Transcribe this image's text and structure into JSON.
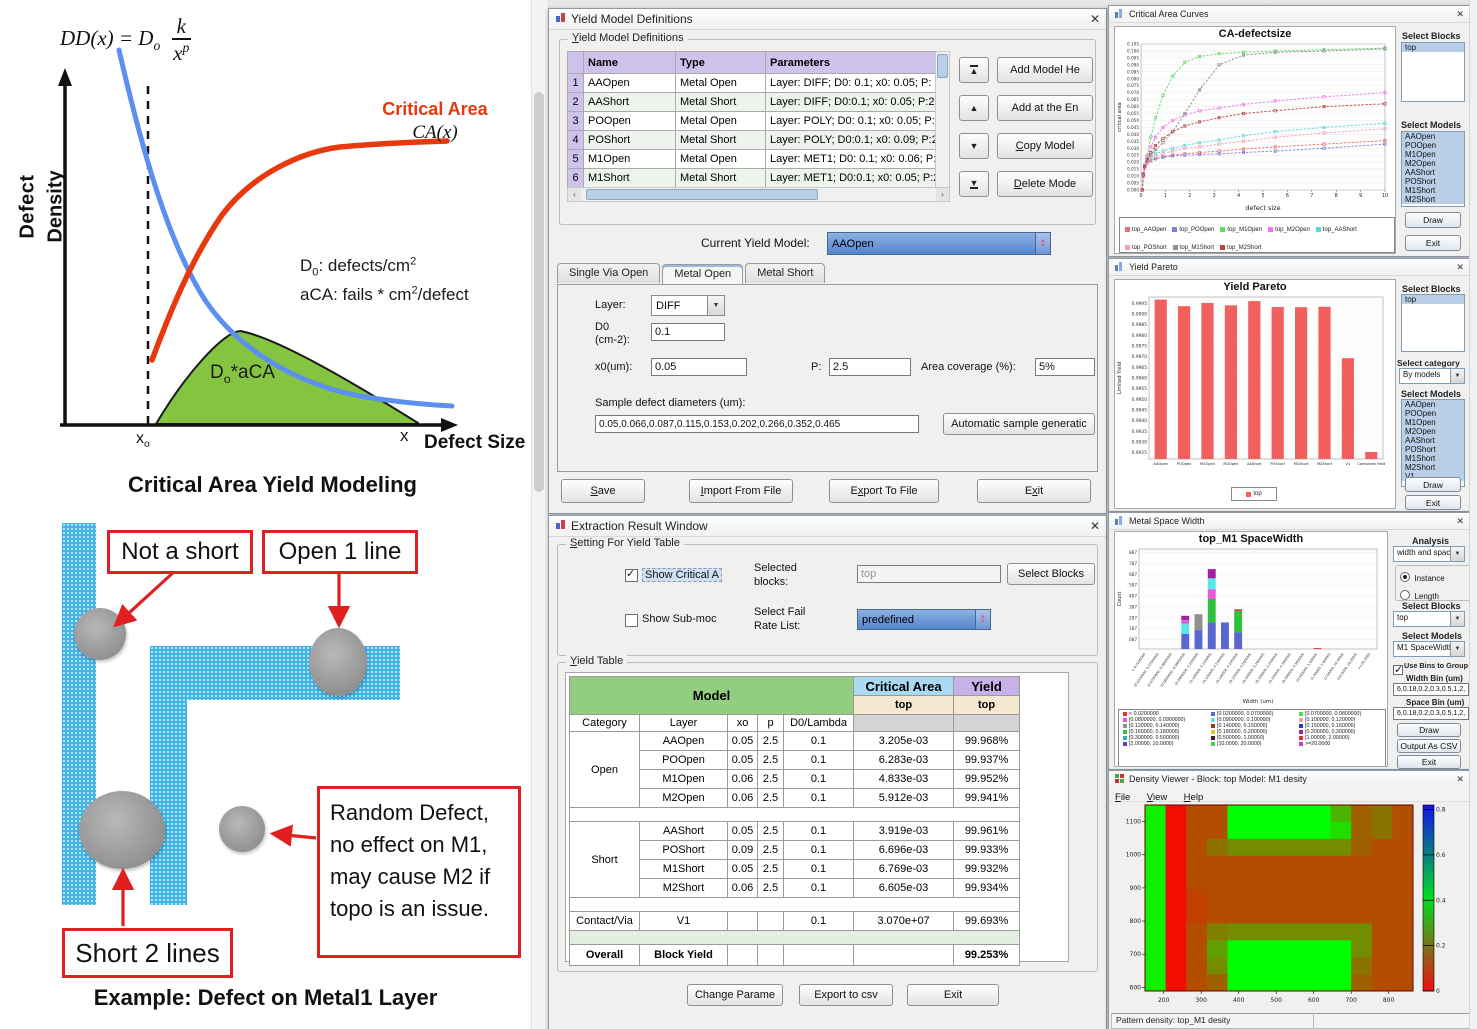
{
  "left": {
    "top_diagram": {
      "formula": {
        "pre": "DD(x) = D",
        "sub": "o",
        "num": "k",
        "den": "x",
        "den_exp": "p"
      },
      "y_axis": {
        "line1": "Defect",
        "line2": "Density"
      },
      "critical_area_label": "Critical Area",
      "ca_func_label": "CA(x)",
      "note_d0": {
        "base": "D",
        "sub": "0",
        "rest": ": defects/cm",
        "exp": "2"
      },
      "note_aca": {
        "pre": "aCA: fails * cm",
        "exp": "2",
        "rest": "/defect"
      },
      "area_label": {
        "base": "D",
        "sub": "o",
        "rest": "*aCA"
      },
      "x_axis": {
        "x0_base": "x",
        "x0_sub": "o",
        "x_end": "x",
        "label": "Defect Size"
      },
      "caption": "Critical Area Yield Modeling"
    },
    "bottom_diagram": {
      "callout_not_short": "Not a short",
      "callout_open": "Open 1 line",
      "callout_short": "Short 2 lines",
      "callout_random": [
        "Random  Defect,",
        "no effect on M1,",
        "may cause M2 if",
        "topo is an issue."
      ],
      "caption": "Example:  Defect on Metal1 Layer"
    }
  },
  "yield_model_window": {
    "title": "Yield Model Definitions",
    "group_label": "Yield Model Definitions",
    "table": {
      "columns": [
        "Name",
        "Type",
        "Parameters"
      ],
      "rows": [
        {
          "n": "1",
          "name": "AAOpen",
          "type": "Metal Open",
          "params": "Layer: DIFF; D0: 0.1; x0: 0.05; P: 2.5; Are"
        },
        {
          "n": "2",
          "name": "AAShort",
          "type": "Metal Short",
          "params": "Layer: DIFF; D0:0.1; x0: 0.05; P:2.5; Are"
        },
        {
          "n": "3",
          "name": "POOpen",
          "type": "Metal Open",
          "params": "Layer: POLY; D0: 0.1; x0: 0.05; P: 2.5; Ar"
        },
        {
          "n": "4",
          "name": "POShort",
          "type": "Metal Short",
          "params": "Layer: POLY; D0:0.1; x0: 0.09; P:2.5; Are"
        },
        {
          "n": "5",
          "name": "M1Open",
          "type": "Metal Open",
          "params": "Layer: MET1; D0: 0.1; x0: 0.06; P: 2.5; A"
        },
        {
          "n": "6",
          "name": "M1Short",
          "type": "Metal Short",
          "params": "Layer: MET1; D0:0.1; x0: 0.05; P:2.5; Are"
        }
      ]
    },
    "side_buttons": {
      "add_here": "Add Model He",
      "add_end": "Add at the En",
      "copy": "Copy Model",
      "delete": "Delete Mode"
    },
    "current_model_label": "Current Yield Model:",
    "current_model_value": "AAOpen",
    "tabs": [
      "Single Via Open",
      "Metal Open",
      "Metal Short"
    ],
    "form": {
      "layer_label": "Layer:",
      "layer_value": "DIFF",
      "d0_label_1": "D0",
      "d0_label_2": "(cm-2):",
      "d0_value": "0.1",
      "x0_label": "x0(um):",
      "x0_value": "0.05",
      "p_label": "P:",
      "p_value": "2.5",
      "area_label": "Area coverage (%):",
      "area_value": "5%",
      "sample_label": "Sample defect diameters (um):",
      "sample_value": "0.05,0.066,0.087,0.115,0.153,0.202,0.266,0.352,0.465",
      "auto_button": "Automatic sample generatic"
    },
    "bottom_buttons": [
      "Save",
      "Import From File",
      "Export To File",
      "Exit"
    ]
  },
  "extraction_window": {
    "title": "Extraction Result Window",
    "settings": {
      "group_label": "Setting For Yield Table",
      "show_critical": "Show Critical A",
      "selected_blocks_1": "Selected",
      "selected_blocks_2": "blocks:",
      "selected_blocks_value": "top",
      "select_blocks_button": "Select Blocks",
      "show_submodel": "Show Sub-moc",
      "fail_rate_1": "Select Fail",
      "fail_rate_2": "Rate List:",
      "fail_rate_value": "predefined"
    },
    "yield_group_label": "Yield Table",
    "yield_table": {
      "header_model": "Model",
      "header_ca": "Critical Area",
      "header_yield": "Yield",
      "subheader_top": "top",
      "columns": [
        "Category",
        "Layer",
        "xo",
        "p",
        "D0/Lambda"
      ],
      "groups": [
        {
          "category": "Open",
          "rows": [
            [
              "AAOpen",
              "0.05",
              "2.5",
              "0.1",
              "3.205e-03",
              "99.968%"
            ],
            [
              "POOpen",
              "0.05",
              "2.5",
              "0.1",
              "6.283e-03",
              "99.937%"
            ],
            [
              "M1Open",
              "0.06",
              "2.5",
              "0.1",
              "4.833e-03",
              "99.952%"
            ],
            [
              "M2Open",
              "0.06",
              "2.5",
              "0.1",
              "5.912e-03",
              "99.941%"
            ]
          ]
        },
        {
          "category": "Short",
          "rows": [
            [
              "AAShort",
              "0.05",
              "2.5",
              "0.1",
              "3.919e-03",
              "99.961%"
            ],
            [
              "POShort",
              "0.09",
              "2.5",
              "0.1",
              "6.696e-03",
              "99.933%"
            ],
            [
              "M1Short",
              "0.05",
              "2.5",
              "0.1",
              "6.769e-03",
              "99.932%"
            ],
            [
              "M2Short",
              "0.06",
              "2.5",
              "0.1",
              "6.605e-03",
              "99.934%"
            ]
          ]
        },
        {
          "category": "Contact/Via",
          "rows": [
            [
              "V1",
              "",
              "",
              "0.1",
              "3.070e+07",
              "99.693%"
            ]
          ]
        }
      ],
      "overall": {
        "category": "Overall",
        "label": "Block Yield",
        "value": "99.253%"
      }
    },
    "bottom_buttons": [
      "Change Parame",
      "Export to csv",
      "Exit"
    ]
  },
  "ca_window": {
    "title": "Critical Area Curves",
    "select_blocks_label": "Select Blocks",
    "blocks": [
      "top"
    ],
    "select_models_label": "Select Models",
    "models": [
      "AAOpen",
      "POOpen",
      "M1Open",
      "M2Open",
      "AAShort",
      "POShort",
      "M1Short",
      "M2Short"
    ],
    "draw_button": "Draw",
    "exit_button": "Exit",
    "chart": {
      "type": "line",
      "title": "CA-defectsize",
      "xlabel": "defect size",
      "ylabel": "critical area",
      "xlim": [
        0,
        10
      ],
      "ylim": [
        0,
        0.105
      ],
      "ytick_step": 0.005,
      "xticks": [
        0,
        1,
        2,
        3,
        4,
        5,
        6,
        7,
        8,
        9,
        10
      ],
      "x": [
        0.05,
        0.1,
        0.15,
        0.25,
        0.4,
        0.6,
        0.9,
        1.3,
        1.8,
        2.4,
        3.2,
        4.2,
        5.5,
        7.5,
        10
      ],
      "series": [
        {
          "name": "top_AAOpen",
          "color": "#e87070",
          "values": [
            0.0,
            0.01,
            0.016,
            0.019,
            0.021,
            0.0225,
            0.024,
            0.025,
            0.026,
            0.027,
            0.028,
            0.0295,
            0.031,
            0.033,
            0.0355
          ]
        },
        {
          "name": "top_POOpen",
          "color": "#8080d8",
          "values": [
            0.0,
            0.012,
            0.017,
            0.02,
            0.0215,
            0.0225,
            0.0235,
            0.0245,
            0.025,
            0.0255,
            0.026,
            0.027,
            0.028,
            0.03,
            0.033
          ]
        },
        {
          "name": "top_M1Open",
          "color": "#66d966",
          "values": [
            0.0,
            0.012,
            0.018,
            0.025,
            0.038,
            0.052,
            0.068,
            0.082,
            0.092,
            0.096,
            0.098,
            0.099,
            0.1,
            0.101,
            0.102
          ]
        },
        {
          "name": "top_M2Open",
          "color": "#ee77ee",
          "values": [
            0.0,
            0.012,
            0.018,
            0.024,
            0.031,
            0.038,
            0.045,
            0.05,
            0.054,
            0.057,
            0.059,
            0.0615,
            0.064,
            0.067,
            0.07
          ]
        },
        {
          "name": "top_AAShort",
          "color": "#5fd8d8",
          "values": [
            0.0,
            0.011,
            0.017,
            0.02,
            0.023,
            0.026,
            0.028,
            0.03,
            0.032,
            0.034,
            0.036,
            0.039,
            0.042,
            0.045,
            0.048
          ]
        },
        {
          "name": "top_POShort",
          "color": "#f4a0b8",
          "values": [
            0.0,
            0.011,
            0.016,
            0.019,
            0.022,
            0.024,
            0.026,
            0.028,
            0.03,
            0.031,
            0.033,
            0.035,
            0.038,
            0.041,
            0.044
          ]
        },
        {
          "name": "top_M1Short",
          "color": "#8f8f8f",
          "values": [
            0.0,
            0.011,
            0.017,
            0.021,
            0.025,
            0.029,
            0.034,
            0.042,
            0.055,
            0.072,
            0.09,
            0.097,
            0.099,
            0.1,
            0.1015
          ]
        },
        {
          "name": "top_M2Short",
          "color": "#bb4444",
          "values": [
            0.0,
            0.011,
            0.017,
            0.022,
            0.027,
            0.032,
            0.037,
            0.042,
            0.046,
            0.049,
            0.052,
            0.055,
            0.057,
            0.06,
            0.062
          ]
        }
      ],
      "legend_rows": [
        [
          "top_AAOpen",
          "top_POOpen",
          "top_M1Open",
          "top_M2Open",
          "top_AAShort"
        ],
        [
          "top_POShort",
          "top_M1Short",
          "top_M2Short"
        ]
      ]
    }
  },
  "pareto_window": {
    "title": "Yield Pareto",
    "select_blocks_label": "Select Blocks",
    "blocks": [
      "top"
    ],
    "select_category_label": "Select category",
    "category_value": "By models",
    "select_models_label": "Select Models",
    "models": [
      "AAOpen",
      "POOpen",
      "M1Open",
      "M2Open",
      "AAShort",
      "POShort",
      "M1Short",
      "M2Short",
      "V1"
    ],
    "draw_button": "Draw",
    "exit_button": "Exit",
    "chart": {
      "type": "bar",
      "title": "Yield Pareto",
      "ylabel": "Limited Yield",
      "categories": [
        "AAOpen",
        "POOpen",
        "M1Open",
        "M2Open",
        "AAShort",
        "POShort",
        "M1Short",
        "M2Short",
        "V1",
        "Combined Yield"
      ],
      "values": [
        0.99968,
        0.99937,
        0.99952,
        0.99941,
        0.99961,
        0.99933,
        0.99932,
        0.99934,
        0.99693,
        0.99253
      ],
      "ylim": [
        0.9922,
        0.9998
      ],
      "ytick_min": 0.9925,
      "ytick_max": 0.9995,
      "ytick_step": 0.0005,
      "bar_color": "#f25f5f",
      "legend": "top"
    }
  },
  "spacewidth_window": {
    "title": "Metal Space Width",
    "analysis_label": "Analysis",
    "analysis_value": "width and space",
    "radio_instance": "Instance",
    "radio_length": "Length",
    "select_blocks_label": "Select Blocks",
    "blocks_value": "top",
    "select_models_label": "Select Models",
    "models_value": "M1 SpaceWidth",
    "use_bins_label": "Use Bins to Group Results",
    "width_bin_label": "Width Bin (um)",
    "width_bin_value": "6,0.18,0.2,0.3,0.5,1,2,10,20",
    "space_bin_label": "Space Bin (um)",
    "space_bin_value": "6,0.18,0.2,0.3,0.5,1,2,10,20",
    "draw_button": "Draw",
    "csv_button": "Output As CSV",
    "exit_button": "Exit",
    "chart": {
      "type": "stacked_bar",
      "title": "top_M1 SpaceWidth",
      "ylabel": "Count",
      "xlabel": "Width (um)",
      "ylim": [
        0,
        920
      ],
      "yticks_v": [
        87,
        187,
        287,
        387,
        487,
        587,
        687,
        787,
        887
      ],
      "yticks_l": [
        "087",
        "187",
        "287",
        "387",
        "487",
        "587",
        "687",
        "787",
        "887"
      ],
      "bins": [
        "< 0.0200000",
        "[0.0200000, 0.0700000)",
        "[0.0700000, 0.0800000)",
        "[0.0800000, 0.0900000)",
        "[0.0900000, 0.100000)",
        "[0.100000, 0.120000)",
        "[0.120000, 0.140000)",
        "[0.140000, 0.150000)",
        "[0.150000, 0.160000)",
        "[0.160000, 0.180000)",
        "[0.180000, 0.200000)",
        "[0.200000, 0.300000)",
        "[0.300000, 0.500000)",
        "[0.500000, 1.00000)",
        "[1.00000, 2.00000)",
        "[2.00000, 10.0000)",
        "[10.0000, 20.0000)",
        ">=20.0000"
      ],
      "bin_colors": [
        "#e83030",
        "#5868d0",
        "#50e050",
        "#e858d8",
        "#58e8e8",
        "#f0a0a8",
        "#909090",
        "#a83028",
        "#3038b0",
        "#30c040",
        "#d8cc38",
        "#a020a0",
        "#30b0a8",
        "#282828",
        "#e03030",
        "#5048c0",
        "#40d040",
        "#d040c8"
      ],
      "bars": [
        [],
        [],
        [],
        [
          [
            1,
            140
          ],
          [
            4,
            95
          ],
          [
            3,
            30
          ],
          [
            11,
            40
          ]
        ],
        [
          [
            1,
            170
          ],
          [
            6,
            150
          ]
        ],
        [
          [
            1,
            245
          ],
          [
            9,
            215
          ],
          [
            3,
            90
          ],
          [
            4,
            100
          ],
          [
            11,
            85
          ]
        ],
        [
          [
            1,
            245
          ]
        ],
        [
          [
            1,
            155
          ],
          [
            9,
            195
          ],
          [
            14,
            15
          ]
        ],
        [],
        [],
        [],
        [],
        [],
        [
          [
            14,
            8
          ]
        ],
        [],
        [],
        [],
        []
      ]
    }
  },
  "density_window": {
    "title": "Density Viewer - Block: top  Model: M1 desity",
    "menus": [
      "File",
      "View",
      "Help"
    ],
    "status_left": "Pattern density: top_M1 desity",
    "chart": {
      "type": "heatmap",
      "x_range": [
        150,
        865
      ],
      "y_range": [
        589,
        1150
      ],
      "xticks": [
        200,
        300,
        400,
        500,
        600,
        700,
        800
      ],
      "yticks": [
        600,
        700,
        800,
        900,
        1000,
        1100
      ],
      "colorbar_ticks": [
        0.8,
        0.6,
        0.4,
        0.2,
        0
      ],
      "values": [
        [
          0.38,
          0.02,
          0.12,
          0.12,
          0.4,
          0.4,
          0.4,
          0.4,
          0.4,
          0.28,
          0.15,
          0.18,
          0.12
        ],
        [
          0.38,
          0.02,
          0.12,
          0.12,
          0.4,
          0.4,
          0.4,
          0.4,
          0.4,
          0.35,
          0.15,
          0.18,
          0.12
        ],
        [
          0.38,
          0.02,
          0.12,
          0.18,
          0.22,
          0.22,
          0.22,
          0.22,
          0.22,
          0.22,
          0.15,
          0.12,
          0.12
        ],
        [
          0.38,
          0.02,
          0.12,
          0.12,
          0.12,
          0.12,
          0.12,
          0.12,
          0.12,
          0.12,
          0.12,
          0.12,
          0.12
        ],
        [
          0.38,
          0.02,
          0.12,
          0.12,
          0.12,
          0.12,
          0.12,
          0.12,
          0.12,
          0.12,
          0.12,
          0.12,
          0.12
        ],
        [
          0.38,
          0.02,
          0.1,
          0.12,
          0.12,
          0.12,
          0.12,
          0.12,
          0.12,
          0.12,
          0.12,
          0.12,
          0.12
        ],
        [
          0.38,
          0.02,
          0.1,
          0.12,
          0.12,
          0.12,
          0.12,
          0.12,
          0.12,
          0.12,
          0.12,
          0.12,
          0.12
        ],
        [
          0.38,
          0.02,
          0.12,
          0.2,
          0.22,
          0.22,
          0.22,
          0.22,
          0.22,
          0.22,
          0.22,
          0.12,
          0.12
        ],
        [
          0.38,
          0.02,
          0.12,
          0.25,
          0.4,
          0.4,
          0.4,
          0.4,
          0.4,
          0.4,
          0.22,
          0.12,
          0.12
        ],
        [
          0.38,
          0.02,
          0.12,
          0.22,
          0.4,
          0.4,
          0.4,
          0.4,
          0.4,
          0.4,
          0.18,
          0.12,
          0.12
        ],
        [
          0.38,
          0.02,
          0.12,
          0.15,
          0.4,
          0.4,
          0.4,
          0.4,
          0.4,
          0.4,
          0.15,
          0.12,
          0.12
        ]
      ]
    }
  }
}
